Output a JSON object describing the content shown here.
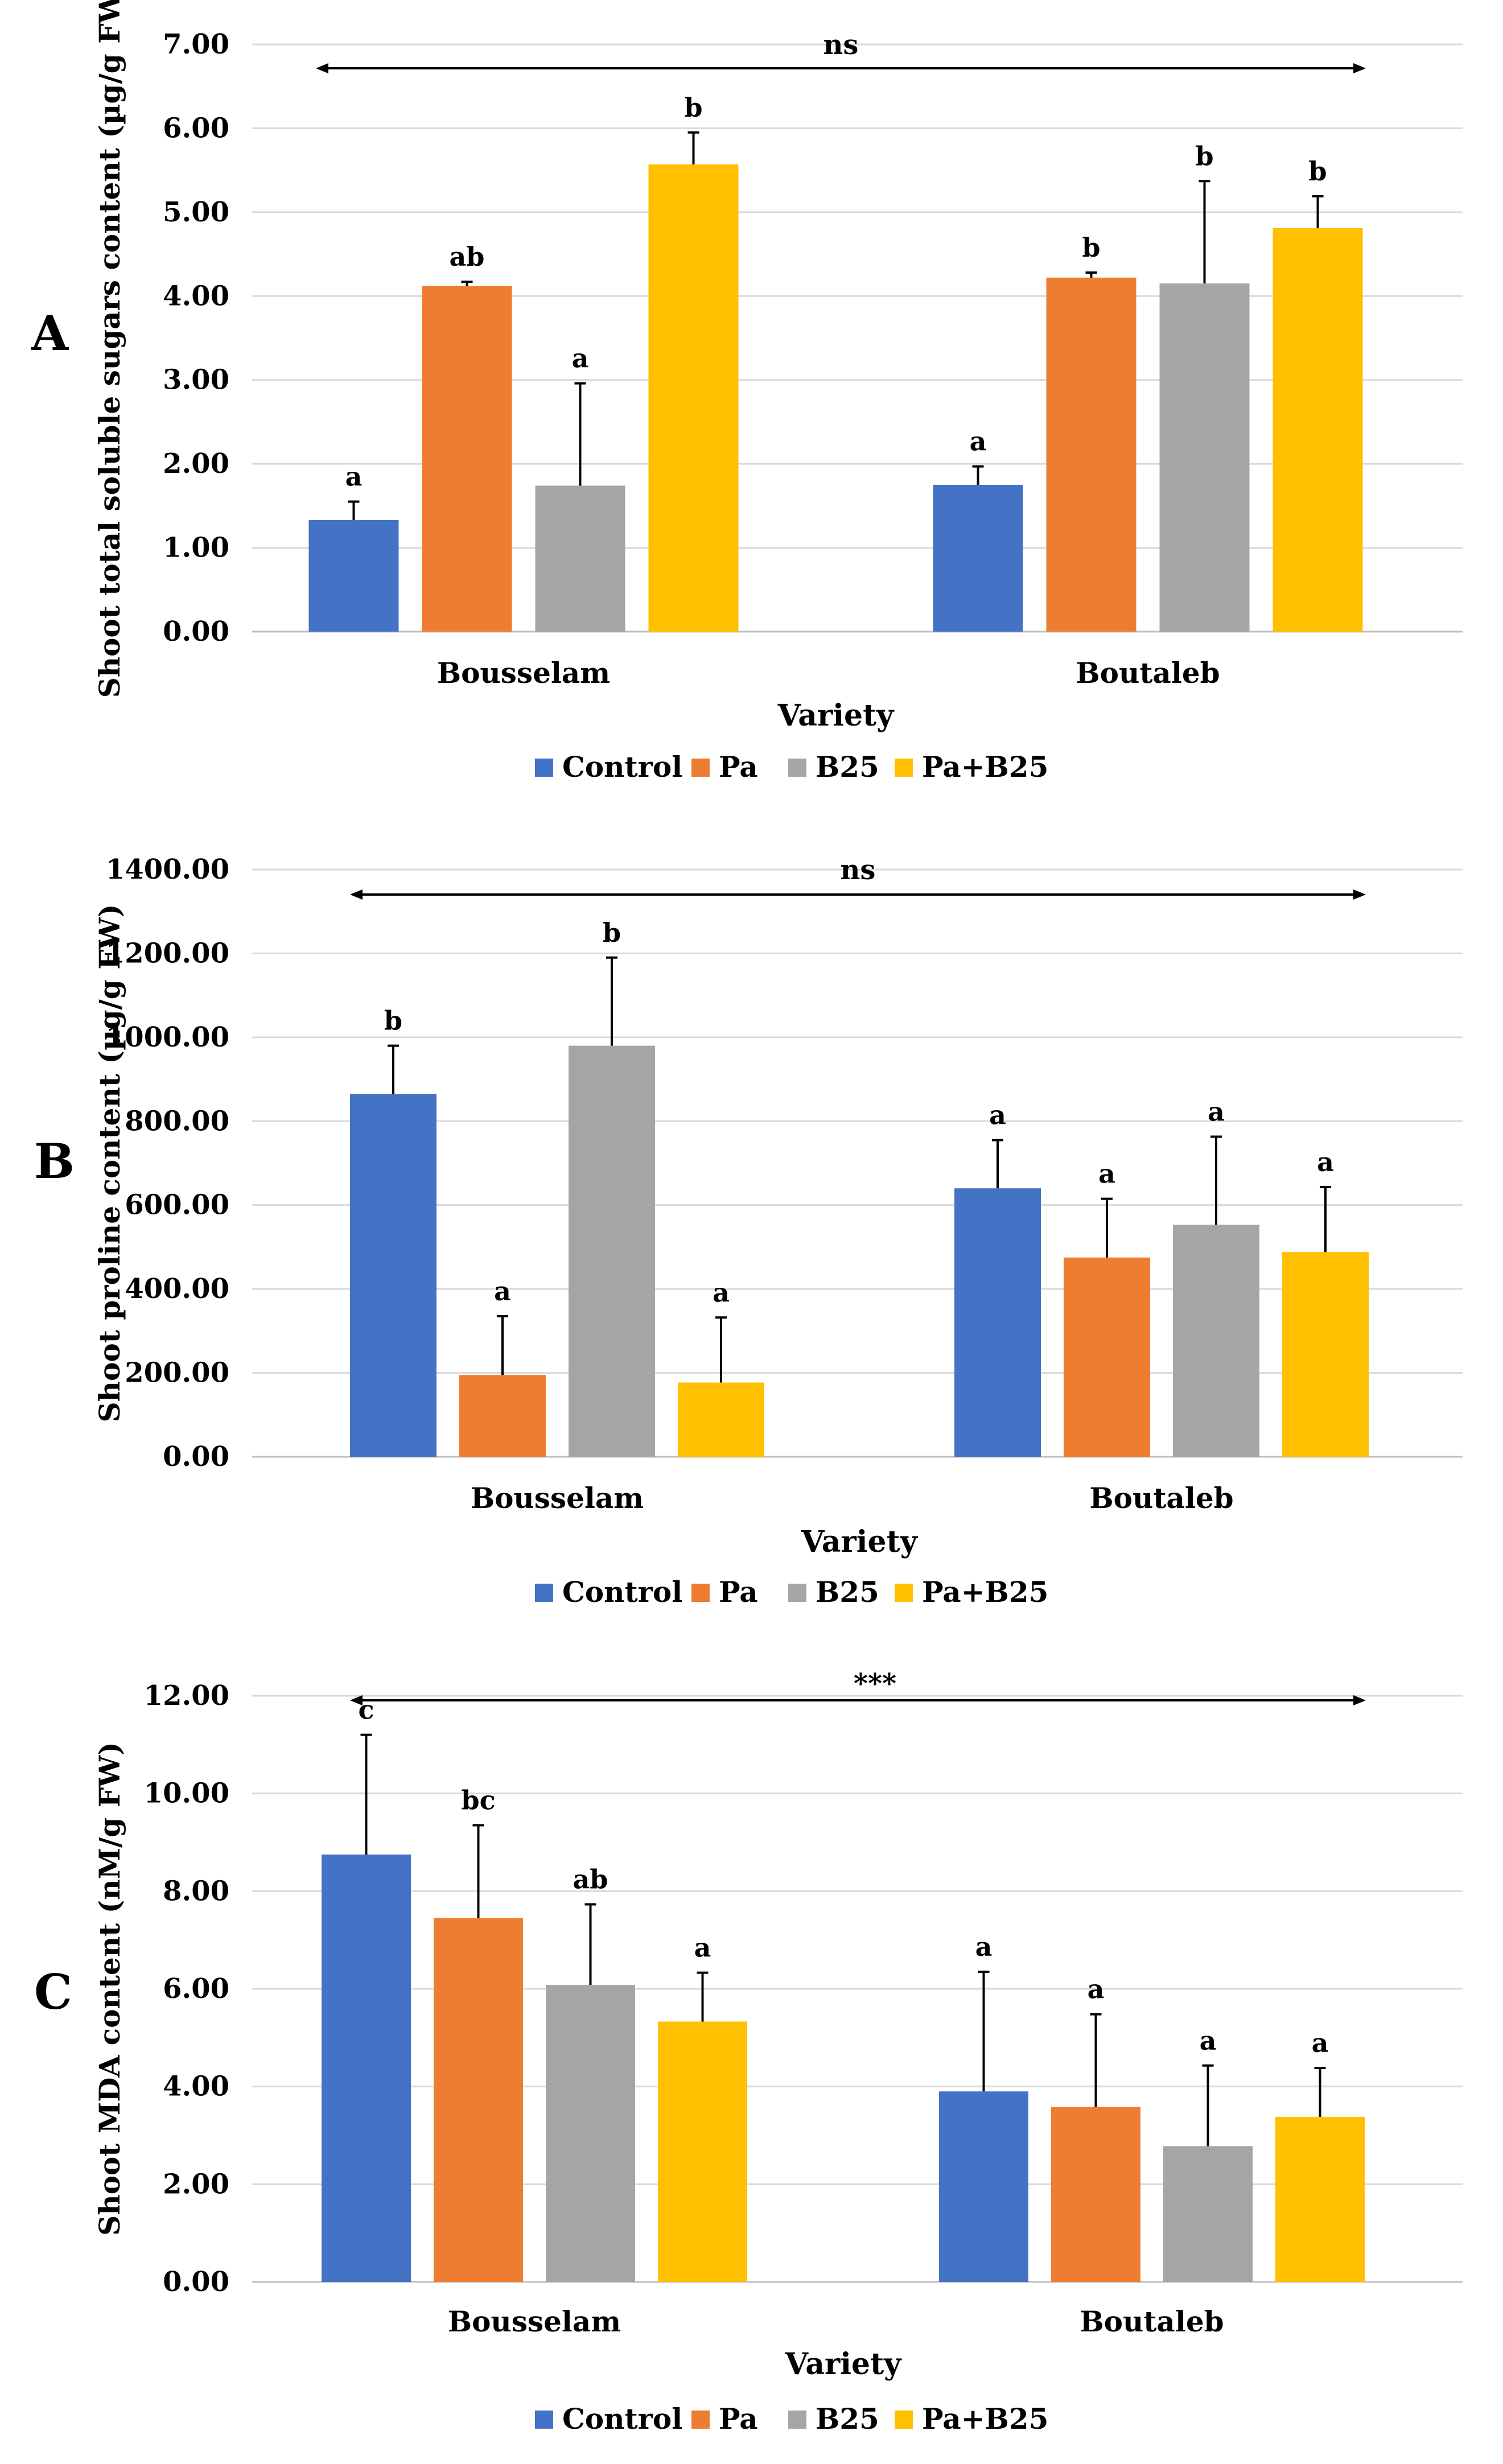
{
  "colors": {
    "Control": "#4472C4",
    "Pa": "#ED7D31",
    "B25": "#A5A5A5",
    "Pa+B25": "#FFC000",
    "grid": "#d9d9d9",
    "axis": "#000000"
  },
  "chart_data": [
    {
      "type": "bar",
      "panel_label": "A",
      "ylabel": "Shoot total soluble sugars content (µg/g FW)",
      "xlabel": "Variety",
      "categories": [
        "Bousselam",
        "Boutaleb"
      ],
      "ylim": [
        0,
        7
      ],
      "yticks": [
        "0.00",
        "1.00",
        "2.00",
        "3.00",
        "4.00",
        "5.00",
        "6.00",
        "7.00"
      ],
      "significance": "ns",
      "legend": [
        "Control",
        "Pa",
        "B25",
        "Pa+B25"
      ],
      "legend_position": "bottom",
      "series": [
        {
          "name": "Control",
          "values": [
            1.33,
            1.75
          ],
          "errors": [
            0.22,
            0.22
          ],
          "letters": [
            "a",
            "a"
          ]
        },
        {
          "name": "Pa",
          "values": [
            4.12,
            4.22
          ],
          "errors": [
            0.05,
            0.06
          ],
          "letters": [
            "ab",
            "b"
          ]
        },
        {
          "name": "B25",
          "values": [
            1.74,
            4.15
          ],
          "errors": [
            1.22,
            1.22
          ],
          "letters": [
            "a",
            "b"
          ]
        },
        {
          "name": "Pa+B25",
          "values": [
            5.57,
            4.81
          ],
          "errors": [
            0.38,
            0.38
          ],
          "letters": [
            "b",
            "b"
          ]
        }
      ]
    },
    {
      "type": "bar",
      "panel_label": "B",
      "ylabel": "Shoot proline content (µg/g FW)",
      "xlabel": "Variety",
      "categories": [
        "Bousselam",
        "Boutaleb"
      ],
      "ylim": [
        0,
        1400
      ],
      "yticks": [
        "0.00",
        "200.00",
        "400.00",
        "600.00",
        "800.00",
        "1000.00",
        "1200.00",
        "1400.00"
      ],
      "significance": "ns",
      "legend": [
        "Control",
        "Pa",
        "B25",
        "Pa+B25"
      ],
      "legend_position": "bottom",
      "series": [
        {
          "name": "Control",
          "values": [
            865,
            640
          ],
          "errors": [
            115,
            115
          ],
          "letters": [
            "b",
            "a"
          ]
        },
        {
          "name": "Pa",
          "values": [
            195,
            475
          ],
          "errors": [
            140,
            140
          ],
          "letters": [
            "a",
            "a"
          ]
        },
        {
          "name": "B25",
          "values": [
            980,
            553
          ],
          "errors": [
            210,
            210
          ],
          "letters": [
            "b",
            "a"
          ]
        },
        {
          "name": "Pa+B25",
          "values": [
            177,
            488
          ],
          "errors": [
            155,
            155
          ],
          "letters": [
            "a",
            "a"
          ]
        }
      ]
    },
    {
      "type": "bar",
      "panel_label": "C",
      "ylabel": "Shoot MDA content (nM/g FW)",
      "xlabel": "Variety",
      "categories": [
        "Bousselam",
        "Boutaleb"
      ],
      "ylim": [
        0,
        12
      ],
      "yticks": [
        "0.00",
        "2.00",
        "4.00",
        "6.00",
        "8.00",
        "10.00",
        "12.00"
      ],
      "significance": "***",
      "legend": [
        "Control",
        "Pa",
        "B25",
        "Pa+B25"
      ],
      "legend_position": "bottom",
      "series": [
        {
          "name": "Control",
          "values": [
            8.75,
            3.9
          ],
          "errors": [
            2.45,
            2.45
          ],
          "letters": [
            "c",
            "a"
          ]
        },
        {
          "name": "Pa",
          "values": [
            7.45,
            3.58
          ],
          "errors": [
            1.9,
            1.9
          ],
          "letters": [
            "bc",
            "a"
          ]
        },
        {
          "name": "B25",
          "values": [
            6.08,
            2.78
          ],
          "errors": [
            1.65,
            1.65
          ],
          "letters": [
            "ab",
            "a"
          ]
        },
        {
          "name": "Pa+B25",
          "values": [
            5.33,
            3.38
          ],
          "errors": [
            1.0,
            1.0
          ],
          "letters": [
            "a",
            "a"
          ]
        }
      ]
    }
  ]
}
